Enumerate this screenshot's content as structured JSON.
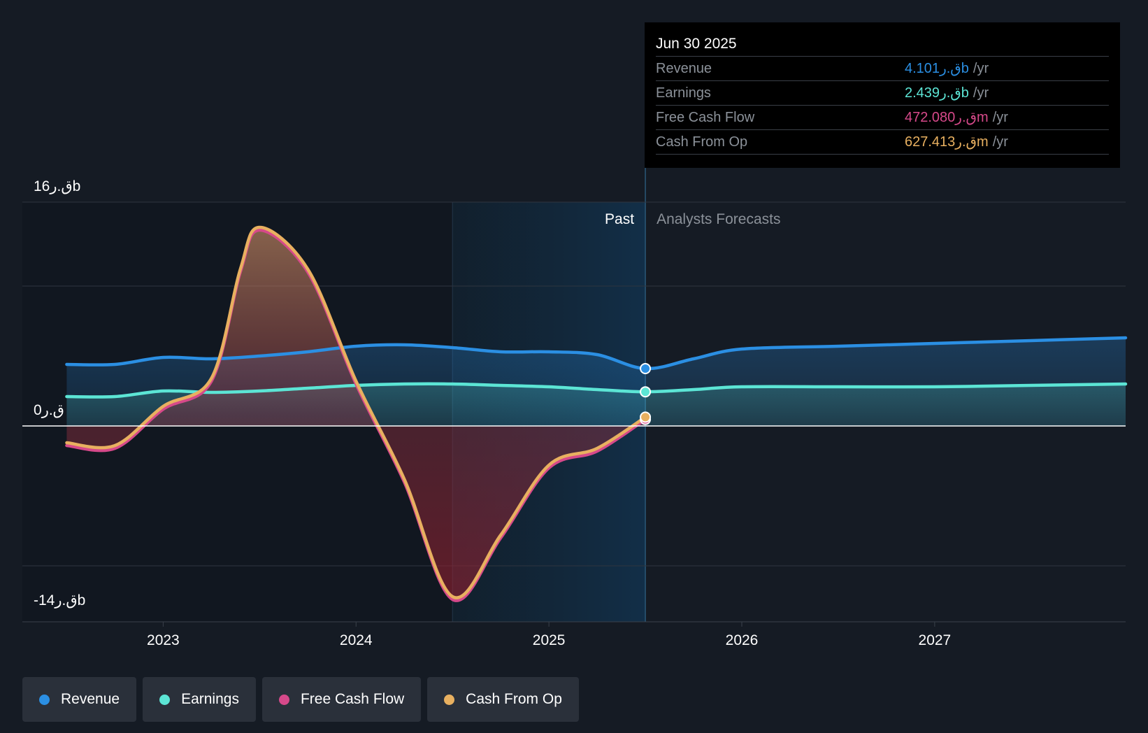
{
  "chart_data": {
    "type": "area",
    "y_axis": {
      "top_label": "16ق.رb",
      "zero_label": "0ق.ر",
      "bottom_label": "-14ق.رb",
      "ylim": [
        -14,
        16
      ],
      "unit": "b"
    },
    "x_axis": {
      "ticks": [
        "2023",
        "2024",
        "2025",
        "2026",
        "2027"
      ],
      "tick_values": [
        2023,
        2024,
        2025,
        2026,
        2027
      ],
      "xlim": [
        2022.27,
        2027.99
      ]
    },
    "regions": {
      "past_label": "Past",
      "forecast_label": "Analysts Forecasts",
      "past_start": 2024.5,
      "divider": 2025.5
    },
    "series": [
      {
        "name": "Revenue",
        "color": "#2b8fe3",
        "x": [
          2022.5,
          2022.75,
          2023.0,
          2023.25,
          2023.5,
          2023.75,
          2024.0,
          2024.25,
          2024.5,
          2024.75,
          2025.0,
          2025.25,
          2025.5,
          2025.75,
          2026.0,
          2026.5,
          2027.0,
          2027.5,
          2027.99
        ],
        "values": [
          4.4,
          4.4,
          4.9,
          4.8,
          5.0,
          5.3,
          5.7,
          5.8,
          5.6,
          5.3,
          5.3,
          5.1,
          4.1,
          4.8,
          5.5,
          5.7,
          5.9,
          6.1,
          6.3
        ]
      },
      {
        "name": "Earnings",
        "color": "#5ce5d5",
        "x": [
          2022.5,
          2022.75,
          2023.0,
          2023.25,
          2023.5,
          2023.75,
          2024.0,
          2024.25,
          2024.5,
          2024.75,
          2025.0,
          2025.25,
          2025.5,
          2025.75,
          2026.0,
          2026.5,
          2027.0,
          2027.5,
          2027.99
        ],
        "values": [
          2.1,
          2.1,
          2.5,
          2.4,
          2.5,
          2.7,
          2.9,
          3.0,
          3.0,
          2.9,
          2.8,
          2.6,
          2.44,
          2.6,
          2.8,
          2.8,
          2.8,
          2.9,
          3.0
        ]
      },
      {
        "name": "Free Cash Flow",
        "color": "#d6498a",
        "x": [
          2022.5,
          2022.75,
          2023.0,
          2023.25,
          2023.4,
          2023.5,
          2023.75,
          2024.0,
          2024.25,
          2024.5,
          2024.75,
          2025.0,
          2025.25,
          2025.5
        ],
        "values": [
          -1.4,
          -1.6,
          1.2,
          3.2,
          11.0,
          14.0,
          11.0,
          3.0,
          -4.0,
          -12.4,
          -8.0,
          -3.0,
          -1.8,
          0.47
        ]
      },
      {
        "name": "Cash From Op",
        "color": "#e8b060",
        "x": [
          2022.5,
          2022.75,
          2023.0,
          2023.25,
          2023.4,
          2023.5,
          2023.75,
          2024.0,
          2024.25,
          2024.5,
          2024.75,
          2025.0,
          2025.25,
          2025.5
        ],
        "values": [
          -1.2,
          -1.4,
          1.4,
          3.4,
          11.2,
          14.2,
          11.2,
          3.2,
          -3.8,
          -12.2,
          -7.8,
          -2.8,
          -1.6,
          0.63
        ]
      }
    ]
  },
  "tooltip": {
    "date": "Jun 30 2025",
    "rows": [
      {
        "label": "Revenue",
        "value": "4.101ق.رb",
        "unit": "/yr",
        "color": "#2b8fe3"
      },
      {
        "label": "Earnings",
        "value": "2.439ق.رb",
        "unit": "/yr",
        "color": "#5ce5d5"
      },
      {
        "label": "Free Cash Flow",
        "value": "472.080ق.رm",
        "unit": "/yr",
        "color": "#d6498a"
      },
      {
        "label": "Cash From Op",
        "value": "627.413ق.رm",
        "unit": "/yr",
        "color": "#e8b060"
      }
    ]
  },
  "legend": [
    {
      "label": "Revenue",
      "color": "#2b8fe3"
    },
    {
      "label": "Earnings",
      "color": "#5ce5d5"
    },
    {
      "label": "Free Cash Flow",
      "color": "#d6498a"
    },
    {
      "label": "Cash From Op",
      "color": "#e8b060"
    }
  ]
}
